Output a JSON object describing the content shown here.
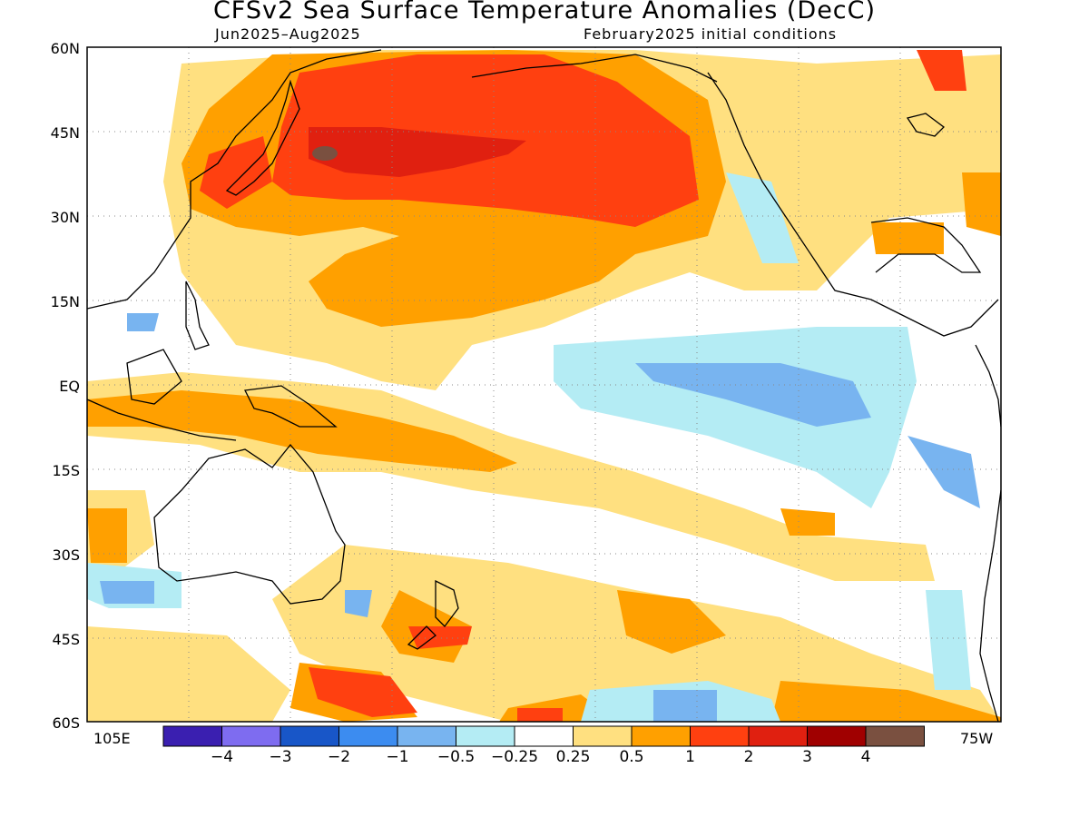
{
  "title": "CFSv2 Sea Surface Temperature Anomalies (DecC)",
  "subtitle_left": "Jun2025–Aug2025",
  "subtitle_right": "February2025 initial conditions",
  "lat_labels": [
    "60N",
    "45N",
    "30N",
    "15N",
    "EQ",
    "15S",
    "30S",
    "45S",
    "60S"
  ],
  "lon_left": "105E",
  "lon_right": "75W",
  "colorbar": {
    "colors": [
      "#3a1fb0",
      "#7e6cf0",
      "#1856c8",
      "#3c8cf0",
      "#78b4f0",
      "#b4ecf4",
      "#ffffff",
      "#ffe080",
      "#ffa000",
      "#ff4010",
      "#e02010",
      "#a00000",
      "#7a5040"
    ],
    "labels": [
      "−4",
      "−3",
      "−2",
      "−1",
      "−0.5",
      "−0.25",
      "0.25",
      "0.5",
      "1",
      "2",
      "3",
      "4"
    ]
  }
}
